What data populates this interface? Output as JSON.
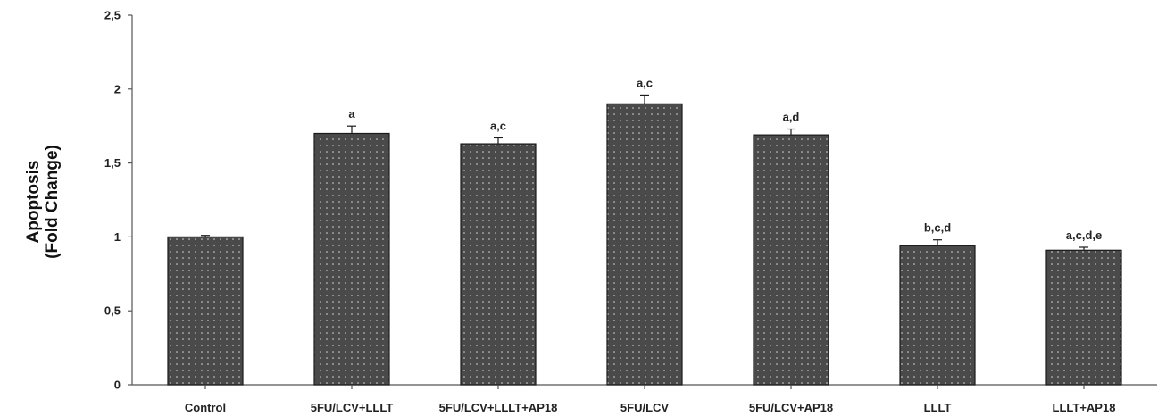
{
  "chart_data": {
    "type": "bar",
    "title": "",
    "xlabel": "",
    "ylabel_lines": [
      "Apoptosis",
      "(Fold Change)"
    ],
    "ylim": [
      0,
      2.5
    ],
    "y_ticks": [
      {
        "value": 0,
        "label": "0"
      },
      {
        "value": 0.5,
        "label": "0,5"
      },
      {
        "value": 1,
        "label": "1"
      },
      {
        "value": 1.5,
        "label": "1,5"
      },
      {
        "value": 2,
        "label": "2"
      },
      {
        "value": 2.5,
        "label": "2,5"
      }
    ],
    "grid": false,
    "legend": "none",
    "categories": [
      "Control",
      "5FU/LCV+LLLT",
      "5FU/LCV+LLLT+AP18",
      "5FU/LCV",
      "5FU/LCV+AP18",
      "LLLT",
      "LLLT+AP18"
    ],
    "values": [
      1.0,
      1.7,
      1.63,
      1.9,
      1.69,
      0.94,
      0.91
    ],
    "errors": [
      0.01,
      0.05,
      0.04,
      0.06,
      0.04,
      0.04,
      0.02
    ],
    "significance_labels": [
      "",
      "a",
      "a,c",
      "a,c",
      "a,d",
      "b,c,d",
      "a,c,d,e"
    ],
    "bar_color": "#4a4a4a",
    "dot_color": "#d8d8d8"
  }
}
